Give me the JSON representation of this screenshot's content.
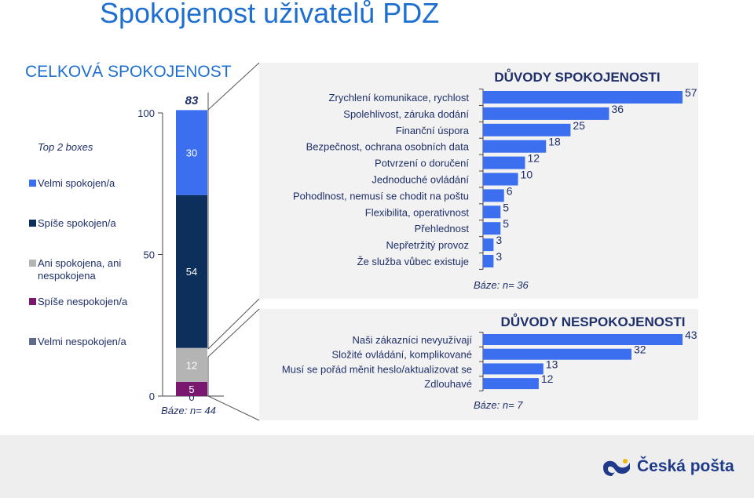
{
  "page": {
    "title": "Spokojenost uživatelů PDZ"
  },
  "overall": {
    "heading": "CELKOVÁ SPOKOJENOST",
    "top2_label": "Top 2 boxes",
    "top2_value": "83",
    "base": "Báze: n= 44",
    "legend": [
      {
        "label": "Velmi spokojen/a",
        "color": "#3b6ff0"
      },
      {
        "label": "Spíše spokojen/a",
        "color": "#0d2f5c"
      },
      {
        "label": "Ani spokojena, ani nespokojena",
        "color": "#b4b4b4"
      },
      {
        "label": "Spíše nespokojen/a",
        "color": "#7a1870"
      },
      {
        "label": "Velmi nespokojen/a",
        "color": "#5f6b8a"
      }
    ]
  },
  "reasons_sat": {
    "heading": "DŮVODY SPOKOJENOSTI",
    "base": "Báze: n= 36"
  },
  "reasons_unsat": {
    "heading": "DŮVODY NESPOKOJENOSTI",
    "base": "Báze: n= 7"
  },
  "logo": {
    "text": "Česká pošta",
    "icon": "posthorn-icon",
    "color": "#1f3a8a"
  },
  "chart_data": [
    {
      "type": "bar",
      "stacked": true,
      "title": "CELKOVÁ SPOKOJENOST",
      "ylim": [
        0,
        100
      ],
      "yticks": [
        0,
        50,
        100
      ],
      "series": [
        {
          "name": "Velmi nespokojen/a",
          "value": 0,
          "color": "#5f6b8a"
        },
        {
          "name": "Spíše nespokojen/a",
          "value": 5,
          "color": "#7a1870"
        },
        {
          "name": "Ani spokojena, ani nespokojena",
          "value": 12,
          "color": "#b4b4b4"
        },
        {
          "name": "Spíše spokojen/a",
          "value": 54,
          "color": "#0d2f5c"
        },
        {
          "name": "Velmi spokojen/a",
          "value": 30,
          "color": "#3b6ff0"
        }
      ],
      "top2": 83
    },
    {
      "type": "bar",
      "orientation": "horizontal",
      "title": "DŮVODY SPOKOJENOSTI",
      "categories": [
        "Zrychlení komunikace, rychlost",
        "Spolehlivost, záruka dodání",
        "Finanční úspora",
        "Bezpečnost, ochrana osobních data",
        "Potvrzení o doručení",
        "Jednoduché ovládání",
        "Pohodlnost, nemusí se chodit na poštu",
        "Flexibilita, operativnost",
        "Přehlednost",
        "Nepřetržitý provoz",
        "Že služba vůbec existuje"
      ],
      "values": [
        57,
        36,
        25,
        18,
        12,
        10,
        6,
        5,
        5,
        3,
        3
      ],
      "xlim": [
        0,
        57
      ],
      "color": "#3b6ff0"
    },
    {
      "type": "bar",
      "orientation": "horizontal",
      "title": "DŮVODY NESPOKOJENOSTI",
      "categories": [
        "Naši zákazníci nevyužívají",
        "Složité ovládání, komplikované",
        "Musí se pořád měnit heslo/aktualizovat se",
        "Zdlouhavé"
      ],
      "values": [
        43,
        32,
        13,
        12
      ],
      "xlim": [
        0,
        43
      ],
      "color": "#3b6ff0"
    }
  ]
}
